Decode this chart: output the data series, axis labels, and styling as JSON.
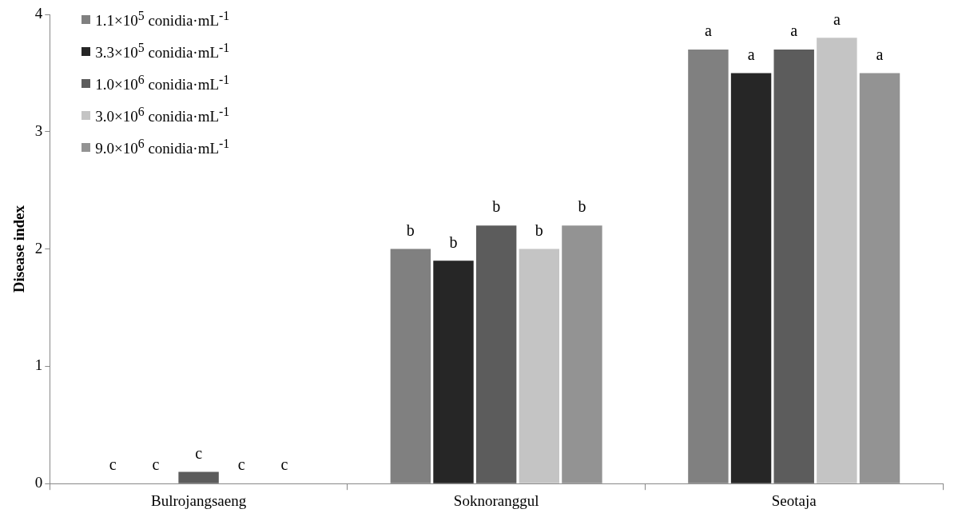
{
  "chart_data": {
    "type": "bar",
    "ylabel": "Disease index",
    "categories": [
      "Bulrojangsaeng",
      "Soknoranggul",
      "Seotaja"
    ],
    "series": [
      {
        "name": "1.1×10$^{5}$ conidia·mL$^{-1}$",
        "color": "#808080",
        "values": [
          0,
          2.0,
          3.7
        ]
      },
      {
        "name": "3.3×10$^{5}$ conidia·mL$^{-1}$",
        "color": "#262626",
        "values": [
          0,
          1.9,
          3.5
        ]
      },
      {
        "name": "1.0×10$^{6}$ conidia·mL$^{-1}$",
        "color": "#5c5c5c",
        "values": [
          0.1,
          2.2,
          3.7
        ]
      },
      {
        "name": "3.0×10$^{6}$ conidia·mL$^{-1}$",
        "color": "#c4c4c4",
        "values": [
          0,
          2.0,
          3.8
        ]
      },
      {
        "name": "9.0×10$^{6}$ conidia·mL$^{-1}$",
        "color": "#939393",
        "values": [
          0,
          2.2,
          3.5
        ]
      }
    ],
    "ylim": [
      0,
      4
    ],
    "yticks": [
      0,
      1,
      2,
      3,
      4
    ],
    "legend": "top left",
    "annotations": [
      "c",
      "c",
      "c",
      "c",
      "c",
      "b",
      "b",
      "b",
      "b",
      "b",
      "a",
      "a",
      "a",
      "a",
      "a"
    ]
  }
}
